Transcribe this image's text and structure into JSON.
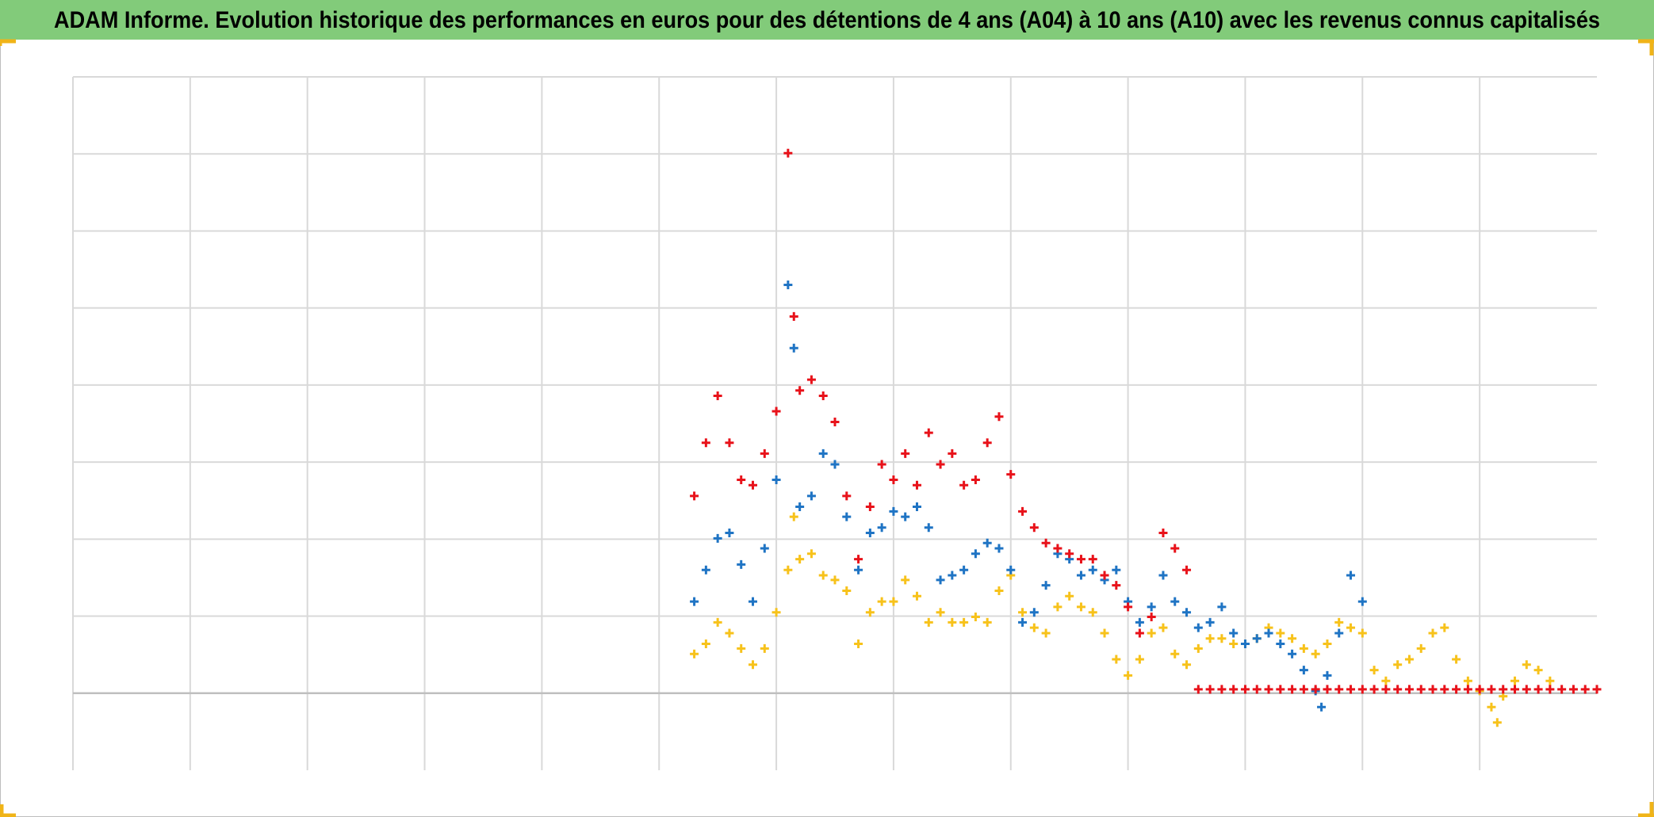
{
  "chart_data": {
    "type": "scatter",
    "title": "ADAM Informe. Evolution historique des performances en euros pour des détentions de 4 ans (A04) à 10 ans (A10) avec les revenus connus capitalisés",
    "marker": "+",
    "grid": true,
    "xlim": [
      0,
      13
    ],
    "xticks": [
      0,
      1,
      2,
      3,
      4,
      5,
      6,
      7,
      8,
      9,
      10,
      11,
      12
    ],
    "ylim": [
      -1,
      8
    ],
    "yticks": [
      0,
      1,
      2,
      3,
      4,
      5,
      6,
      7,
      8
    ],
    "series": [
      {
        "color": "#f7c21b",
        "x": [
          5.3,
          5.4,
          5.5,
          5.6,
          5.7,
          5.8,
          5.9,
          6.0,
          6.1,
          6.15,
          6.2,
          6.3,
          6.4,
          6.5,
          6.6,
          6.7,
          6.8,
          6.9,
          7.0,
          7.1,
          7.2,
          7.3,
          7.4,
          7.5,
          7.6,
          7.7,
          7.8,
          7.9,
          8.0,
          8.1,
          8.2,
          8.3,
          8.4,
          8.5,
          8.6,
          8.7,
          8.8,
          8.9,
          9.0,
          9.1,
          9.2,
          9.3,
          9.4,
          9.5,
          9.6,
          9.7,
          9.8,
          9.9,
          10.0,
          10.1,
          10.2,
          10.3,
          10.4,
          10.5,
          10.6,
          10.7,
          10.8,
          10.9,
          11.0,
          11.1,
          11.2,
          11.3,
          11.4,
          11.5,
          11.6,
          11.7,
          11.8,
          11.9,
          12.0,
          12.1,
          12.15,
          12.2,
          12.3,
          12.4,
          12.5,
          12.6
        ],
        "values": [
          0.51,
          0.64,
          0.92,
          0.78,
          0.58,
          0.37,
          0.58,
          1.05,
          1.6,
          2.29,
          1.74,
          1.81,
          1.53,
          1.47,
          1.33,
          0.64,
          1.05,
          1.19,
          1.19,
          1.47,
          1.26,
          0.92,
          1.05,
          0.92,
          0.92,
          0.99,
          0.92,
          1.33,
          1.53,
          1.05,
          0.85,
          0.78,
          1.12,
          1.26,
          1.12,
          1.05,
          0.78,
          0.44,
          0.23,
          0.44,
          0.78,
          0.85,
          0.51,
          0.37,
          0.58,
          0.71,
          0.71,
          0.64,
          0.64,
          0.71,
          0.85,
          0.78,
          0.71,
          0.58,
          0.51,
          0.64,
          0.92,
          0.85,
          0.78,
          0.3,
          0.16,
          0.37,
          0.44,
          0.58,
          0.78,
          0.85,
          0.44,
          0.16,
          0.03,
          -0.18,
          -0.38,
          -0.04,
          0.16,
          0.37,
          0.3,
          0.16
        ]
      },
      {
        "color": "#1f74c4",
        "x": [
          5.3,
          5.4,
          5.5,
          5.6,
          5.7,
          5.8,
          5.9,
          6.0,
          6.1,
          6.15,
          6.2,
          6.3,
          6.4,
          6.5,
          6.6,
          6.7,
          6.8,
          6.9,
          7.0,
          7.1,
          7.2,
          7.3,
          7.4,
          7.5,
          7.6,
          7.7,
          7.8,
          7.9,
          8.0,
          8.1,
          8.2,
          8.3,
          8.4,
          8.5,
          8.6,
          8.7,
          8.8,
          8.9,
          9.0,
          9.1,
          9.2,
          9.3,
          9.4,
          9.5,
          9.6,
          9.7,
          9.8,
          9.9,
          10.0,
          10.1,
          10.2,
          10.3,
          10.4,
          10.5,
          10.6,
          10.65,
          10.7,
          10.8,
          10.9,
          11.0
        ],
        "values": [
          1.19,
          1.6,
          2.01,
          2.08,
          1.67,
          1.19,
          1.88,
          2.77,
          5.3,
          4.48,
          2.42,
          2.56,
          3.11,
          2.97,
          2.29,
          1.6,
          2.08,
          2.15,
          2.36,
          2.29,
          2.42,
          2.15,
          1.47,
          1.53,
          1.6,
          1.81,
          1.95,
          1.88,
          1.6,
          0.92,
          1.05,
          1.4,
          1.81,
          1.74,
          1.53,
          1.6,
          1.47,
          1.6,
          1.19,
          0.92,
          1.12,
          1.53,
          1.19,
          1.05,
          0.85,
          0.92,
          1.12,
          0.78,
          0.64,
          0.71,
          0.78,
          0.64,
          0.51,
          0.3,
          0.03,
          -0.18,
          0.23,
          0.78,
          1.53,
          1.19
        ]
      },
      {
        "color": "#e8121a",
        "x": [
          5.3,
          5.4,
          5.5,
          5.6,
          5.7,
          5.8,
          5.9,
          6.0,
          6.1,
          6.15,
          6.2,
          6.3,
          6.4,
          6.5,
          6.6,
          6.7,
          6.8,
          6.9,
          7.0,
          7.1,
          7.2,
          7.3,
          7.4,
          7.5,
          7.6,
          7.7,
          7.8,
          7.9,
          8.0,
          8.1,
          8.2,
          8.3,
          8.4,
          8.5,
          8.6,
          8.7,
          8.8,
          8.9,
          9.0,
          9.1,
          9.2,
          9.3,
          9.4,
          9.5,
          9.6,
          9.7,
          9.8,
          9.9,
          10.0,
          10.1,
          10.2,
          10.3,
          10.4,
          10.5,
          10.6,
          10.7,
          10.8,
          10.9,
          11.0,
          11.1,
          11.2,
          11.3,
          11.4,
          11.5,
          11.6,
          11.7,
          11.8,
          11.9,
          12.0,
          12.1,
          12.2,
          12.3,
          12.4,
          12.5,
          12.6,
          12.7,
          12.8,
          12.9,
          13.0
        ],
        "values": [
          2.56,
          3.25,
          3.86,
          3.25,
          2.77,
          2.7,
          3.11,
          3.66,
          7.01,
          4.89,
          3.93,
          4.07,
          3.86,
          3.52,
          2.56,
          1.74,
          2.42,
          2.97,
          2.77,
          3.11,
          2.7,
          3.38,
          2.97,
          3.11,
          2.7,
          2.77,
          3.25,
          3.59,
          2.84,
          2.36,
          2.15,
          1.95,
          1.88,
          1.81,
          1.74,
          1.74,
          1.53,
          1.4,
          1.12,
          0.78,
          0.99,
          2.08,
          1.88,
          1.6,
          0.05,
          0.05,
          0.05,
          0.05,
          0.05,
          0.05,
          0.05,
          0.05,
          0.05,
          0.05,
          0.05,
          0.05,
          0.05,
          0.05,
          0.05,
          0.05,
          0.05,
          0.05,
          0.05,
          0.05,
          0.05,
          0.05,
          0.05,
          0.05,
          0.05,
          0.05,
          0.05,
          0.05,
          0.05,
          0.05,
          0.05,
          0.05,
          0.05,
          0.05,
          0.05
        ]
      }
    ]
  }
}
